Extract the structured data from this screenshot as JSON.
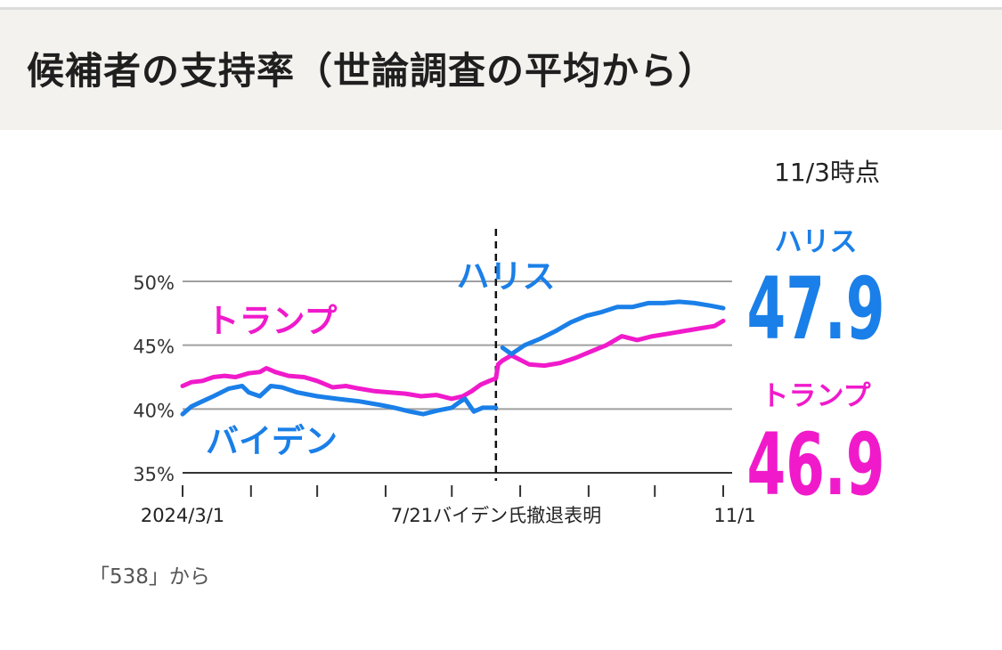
{
  "header": {
    "title": "候補者の支持率（世論調査の平均から）"
  },
  "chart_data": {
    "type": "line",
    "as_of": "11/3時点",
    "y_ticks": [
      "50%",
      "45%",
      "40%",
      "35%"
    ],
    "ylim": [
      35,
      50
    ],
    "x_tick_labels": {
      "start": "2024/3/1",
      "event": "7/21バイデン氏撤退表明",
      "end": "11/1"
    },
    "x_range": [
      "2024-03-01",
      "2024-11-01"
    ],
    "event_date": "2024-07-21",
    "source": "「538」から",
    "colors": {
      "harris": "#1a7fe8",
      "trump": "#f01acb",
      "biden": "#1a7fe8",
      "grid": "#a0a0a0",
      "axis": "#333333"
    },
    "series": [
      {
        "name": "トランプ",
        "key": "trump",
        "final_label": "トランプ",
        "final_value": "46.9",
        "points": [
          [
            "2024-03-01",
            41.8
          ],
          [
            "2024-03-05",
            42.1
          ],
          [
            "2024-03-10",
            42.2
          ],
          [
            "2024-03-15",
            42.5
          ],
          [
            "2024-03-20",
            42.6
          ],
          [
            "2024-03-25",
            42.5
          ],
          [
            "2024-03-31",
            42.8
          ],
          [
            "2024-04-05",
            42.9
          ],
          [
            "2024-04-08",
            43.2
          ],
          [
            "2024-04-12",
            42.9
          ],
          [
            "2024-04-18",
            42.6
          ],
          [
            "2024-04-25",
            42.5
          ],
          [
            "2024-05-01",
            42.2
          ],
          [
            "2024-05-08",
            41.7
          ],
          [
            "2024-05-14",
            41.8
          ],
          [
            "2024-05-20",
            41.6
          ],
          [
            "2024-05-27",
            41.4
          ],
          [
            "2024-06-03",
            41.3
          ],
          [
            "2024-06-10",
            41.2
          ],
          [
            "2024-06-17",
            41.0
          ],
          [
            "2024-06-24",
            41.1
          ],
          [
            "2024-07-01",
            40.8
          ],
          [
            "2024-07-06",
            41.0
          ],
          [
            "2024-07-10",
            41.4
          ],
          [
            "2024-07-14",
            41.9
          ],
          [
            "2024-07-18",
            42.2
          ],
          [
            "2024-07-21",
            42.4
          ],
          [
            "2024-07-22",
            43.5
          ],
          [
            "2024-07-24",
            43.8
          ],
          [
            "2024-07-28",
            44.2
          ],
          [
            "2024-08-05",
            43.5
          ],
          [
            "2024-08-12",
            43.4
          ],
          [
            "2024-08-19",
            43.6
          ],
          [
            "2024-08-26",
            44.0
          ],
          [
            "2024-09-02",
            44.5
          ],
          [
            "2024-09-09",
            45.0
          ],
          [
            "2024-09-16",
            45.7
          ],
          [
            "2024-09-23",
            45.4
          ],
          [
            "2024-09-30",
            45.7
          ],
          [
            "2024-10-07",
            45.9
          ],
          [
            "2024-10-14",
            46.1
          ],
          [
            "2024-10-21",
            46.3
          ],
          [
            "2024-10-28",
            46.5
          ],
          [
            "2024-11-01",
            46.9
          ]
        ]
      },
      {
        "name": "ハリス",
        "key": "harris",
        "final_label": "ハリス",
        "final_value": "47.9",
        "points": [
          [
            "2024-07-24",
            44.8
          ],
          [
            "2024-07-28",
            44.3
          ],
          [
            "2024-08-03",
            45.0
          ],
          [
            "2024-08-10",
            45.5
          ],
          [
            "2024-08-17",
            46.1
          ],
          [
            "2024-08-24",
            46.8
          ],
          [
            "2024-08-31",
            47.3
          ],
          [
            "2024-09-07",
            47.6
          ],
          [
            "2024-09-14",
            48.0
          ],
          [
            "2024-09-21",
            48.0
          ],
          [
            "2024-09-28",
            48.3
          ],
          [
            "2024-10-05",
            48.3
          ],
          [
            "2024-10-12",
            48.4
          ],
          [
            "2024-10-19",
            48.3
          ],
          [
            "2024-10-26",
            48.1
          ],
          [
            "2024-11-01",
            47.9
          ]
        ]
      },
      {
        "name": "バイデン",
        "key": "biden",
        "points": [
          [
            "2024-03-01",
            39.6
          ],
          [
            "2024-03-05",
            40.2
          ],
          [
            "2024-03-10",
            40.6
          ],
          [
            "2024-03-15",
            41.0
          ],
          [
            "2024-03-22",
            41.6
          ],
          [
            "2024-03-28",
            41.8
          ],
          [
            "2024-03-31",
            41.3
          ],
          [
            "2024-04-05",
            41.0
          ],
          [
            "2024-04-10",
            41.8
          ],
          [
            "2024-04-15",
            41.7
          ],
          [
            "2024-04-22",
            41.3
          ],
          [
            "2024-05-01",
            41.0
          ],
          [
            "2024-05-10",
            40.8
          ],
          [
            "2024-05-20",
            40.6
          ],
          [
            "2024-05-30",
            40.3
          ],
          [
            "2024-06-05",
            40.1
          ],
          [
            "2024-06-12",
            39.8
          ],
          [
            "2024-06-18",
            39.6
          ],
          [
            "2024-06-25",
            39.9
          ],
          [
            "2024-07-01",
            40.1
          ],
          [
            "2024-07-05",
            40.6
          ],
          [
            "2024-07-07",
            40.8
          ],
          [
            "2024-07-11",
            39.8
          ],
          [
            "2024-07-15",
            40.1
          ],
          [
            "2024-07-21",
            40.1
          ]
        ]
      }
    ]
  }
}
